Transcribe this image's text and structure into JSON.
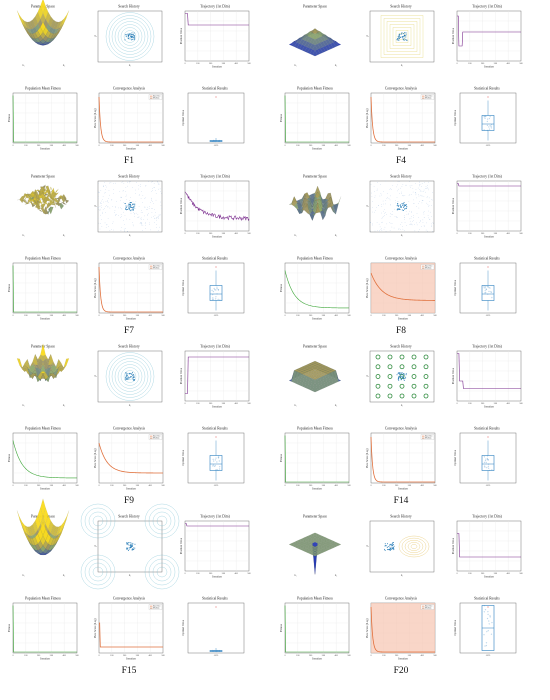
{
  "figure": {
    "blocks": [
      {
        "label": "F1",
        "surface": "bowl",
        "search_pattern": "contour-cluster",
        "traj_profile": "step-down"
      },
      {
        "label": "F4",
        "surface": "pyramid",
        "search_pattern": "square-contour",
        "traj_profile": "step-down-dip"
      },
      {
        "label": "F7",
        "surface": "noisy",
        "search_pattern": "noise",
        "traj_profile": "noisy-decay"
      },
      {
        "label": "F8",
        "surface": "wavy",
        "search_pattern": "dense-grid",
        "traj_profile": "flat-high"
      },
      {
        "label": "F9",
        "surface": "rastrigin",
        "search_pattern": "rastrigin-contour",
        "traj_profile": "jump-up"
      },
      {
        "label": "F14",
        "surface": "plateau",
        "search_pattern": "dot-grid",
        "traj_profile": "low-step"
      },
      {
        "label": "F15",
        "surface": "bowl-tall",
        "search_pattern": "corner-contour",
        "traj_profile": "flat-high"
      },
      {
        "label": "F20",
        "surface": "spike",
        "search_pattern": "oval-contour",
        "traj_profile": "drop-low"
      }
    ],
    "panel_titles": {
      "parameter_space": "Parameter Space",
      "search_history": "Search History",
      "trajectory": "Trajectory (1st Dim)",
      "pop_fitness": "Population Mean Fitness",
      "convergence": "Convergence Analysis",
      "stats": "Statistical Results"
    },
    "axis_labels": {
      "iteration": "Iteration",
      "position_value": "Position Value",
      "fitness": "Fitness",
      "best_score": "Best Score (Log)",
      "optimal_value": "Optimal Value",
      "x1": "x₁",
      "x2": "x₂",
      "category": "AFO"
    },
    "legend": {
      "best": "Best Sco",
      "median": "Median"
    },
    "iteration_ticks": [
      "0",
      "100",
      "200",
      "300",
      "400",
      "500"
    ],
    "colors": {
      "trajectory": "#7b2d8e",
      "fitness": "#3aa535",
      "convergence": "#e0703c",
      "conv_band": "#f7c5b0",
      "box": "#2b7fbf",
      "search_dot": "#1f77b4",
      "contour": "#5fb3c9"
    }
  }
}
